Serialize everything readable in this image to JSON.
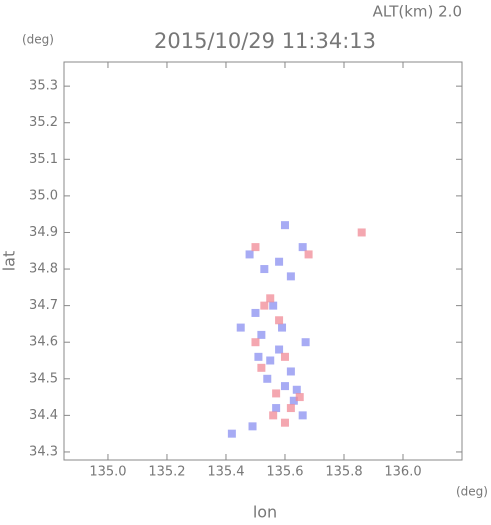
{
  "chart_data": {
    "type": "scatter",
    "top_label": "ALT(km) 2.0",
    "title": "2015/10/29 11:34:13",
    "y_unit": "(deg)",
    "x_unit": "(deg)",
    "ylabel": "lat",
    "xlabel": "lon",
    "xlim": [
      134.851,
      136.2
    ],
    "ylim": [
      34.278,
      35.366
    ],
    "xticks": [
      {
        "value": 135,
        "label": "135.0"
      },
      135.2,
      135.4,
      135.6,
      135.8,
      {
        "value": 136,
        "label": "136.0"
      }
    ],
    "yticks": [
      34.3,
      34.4,
      34.5,
      34.6,
      34.7,
      34.8,
      34.9,
      {
        "value": 35,
        "label": "35.0"
      },
      35.1,
      35.2,
      35.3
    ],
    "series": [
      {
        "color": "#8a8ff0",
        "x": [
          135.55,
          135.58,
          135.52,
          135.6,
          135.63,
          135.57,
          135.66,
          135.5,
          135.56,
          135.53,
          135.58,
          135.62,
          135.48,
          135.66,
          135.6,
          135.45,
          135.42,
          135.49,
          135.62,
          135.54,
          135.67,
          135.59,
          135.51,
          135.64
        ],
        "y": [
          34.55,
          34.58,
          34.62,
          34.48,
          34.44,
          34.42,
          34.4,
          34.68,
          34.7,
          34.8,
          34.82,
          34.78,
          34.84,
          34.86,
          34.92,
          34.64,
          34.35,
          34.37,
          34.52,
          34.5,
          34.6,
          34.64,
          34.56,
          34.47
        ]
      },
      {
        "color": "#f08a96",
        "x": [
          135.53,
          135.58,
          135.5,
          135.62,
          135.56,
          135.6,
          135.55,
          135.68,
          135.86,
          135.52,
          135.6,
          135.65,
          135.57,
          135.5
        ],
        "y": [
          34.7,
          34.66,
          34.6,
          34.42,
          34.4,
          34.38,
          34.72,
          34.84,
          34.9,
          34.53,
          34.56,
          34.45,
          34.46,
          34.86
        ]
      }
    ]
  }
}
